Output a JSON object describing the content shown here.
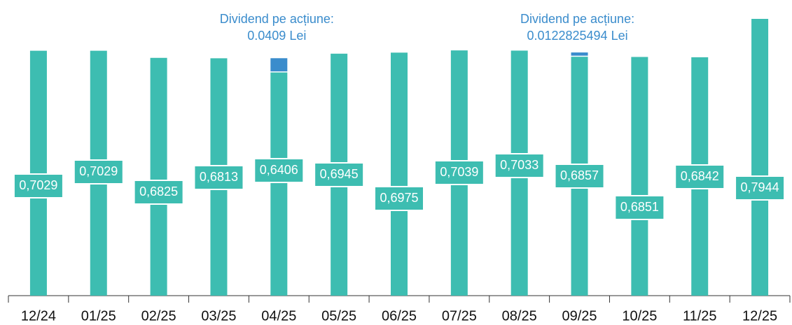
{
  "chart_data": {
    "type": "stacked_bar",
    "categories": [
      "12/24",
      "01/25",
      "02/25",
      "03/25",
      "04/25",
      "05/25",
      "06/25",
      "07/25",
      "08/25",
      "09/25",
      "10/25",
      "11/25",
      "12/25"
    ],
    "series": [
      {
        "color": "#3dbdb1",
        "values": [
          0.7029,
          0.7029,
          0.6825,
          0.6813,
          0.6406,
          0.6945,
          0.6975,
          0.7039,
          0.7033,
          0.6857,
          0.6851,
          0.6842,
          0.7944
        ],
        "value_labels": [
          "0,7029",
          "0,7029",
          "0,6825",
          "0,6813",
          "0,6406",
          "0,6945",
          "0,6975",
          "0,7039",
          "0,7033",
          "0,6857",
          "0,6851",
          "0,6842",
          "0,7944"
        ]
      },
      {
        "name": "Dividend pe acțiune:",
        "color": "#3a8ccc",
        "values": [
          null,
          null,
          null,
          null,
          0.0409,
          null,
          null,
          null,
          null,
          0.0122825494,
          null,
          null,
          null
        ],
        "value_labels": [
          null,
          null,
          null,
          null,
          "0.0409 Lei",
          null,
          null,
          null,
          null,
          "0.0122825494 Lei",
          null,
          null,
          null
        ]
      }
    ]
  }
}
